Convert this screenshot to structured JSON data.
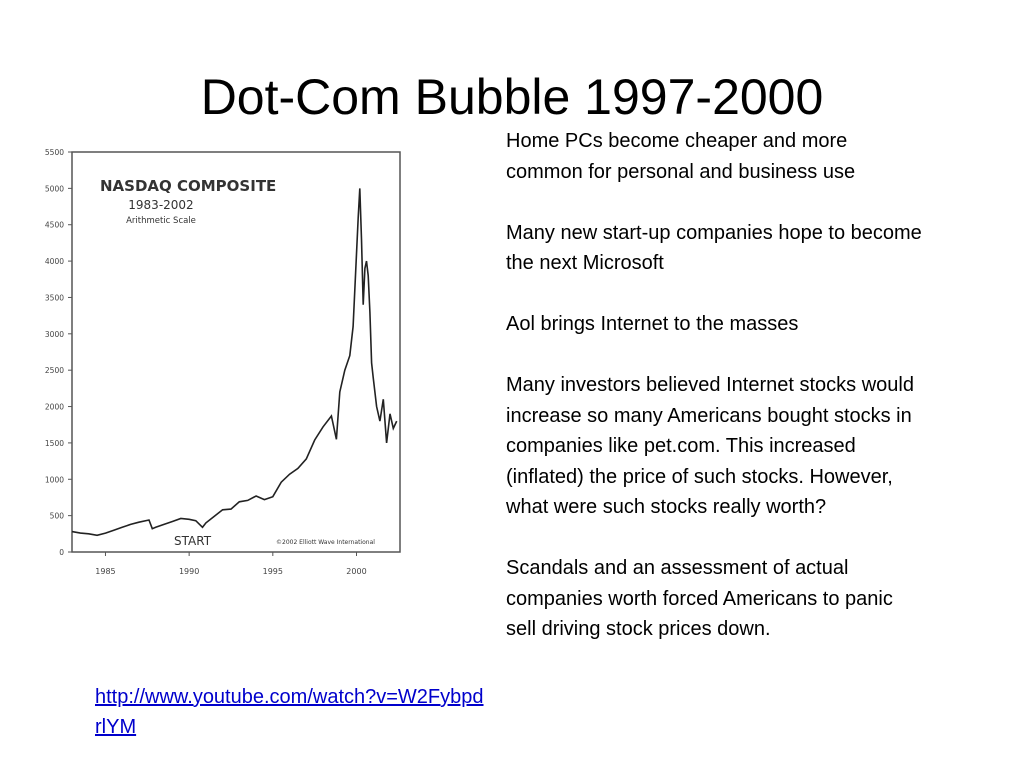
{
  "slide": {
    "title": "Dot-Com Bubble 1997-2000",
    "bullets": [
      "Home PCs become cheaper and more common for personal and business use",
      "Many new start-up companies hope to become the next Microsoft",
      "Aol brings Internet to the masses",
      "Many investors believed Internet stocks would increase so many Americans bought stocks in companies like pet.com. This increased (inflated) the price of such stocks. However, what were such stocks really worth?",
      "Scandals and an assessment of actual companies worth forced Americans to panic sell driving stock prices down."
    ],
    "link": "http://www.youtube.com/watch?v=W2FybpdrlYM"
  },
  "chart_data": {
    "type": "line",
    "title": "NASDAQ COMPOSITE",
    "subtitle": "1983-2002",
    "scale_note": "Arithmetic Scale",
    "annotation": "START",
    "copyright": "©2002 Elliott Wave International",
    "x_ticks": [
      "1985",
      "1990",
      "1995",
      "2000"
    ],
    "y_ticks": [
      "5500",
      "5000",
      "4500",
      "4000",
      "3500",
      "3000",
      "2500",
      "2000",
      "1500",
      "1000",
      "500",
      "0"
    ],
    "xlim": [
      1983,
      2002.6
    ],
    "ylim": [
      0,
      5500
    ],
    "series": [
      {
        "x": [
          1983.0,
          1983.5,
          1984.0,
          1984.5,
          1985.0,
          1985.5,
          1986.0,
          1986.5,
          1987.0,
          1987.6,
          1987.8,
          1988.0,
          1988.5,
          1989.0,
          1989.5,
          1990.0,
          1990.4,
          1990.8,
          1991.0,
          1991.5,
          1992.0,
          1992.5,
          1993.0,
          1993.5,
          1994.0,
          1994.5,
          1995.0,
          1995.5,
          1996.0,
          1996.5,
          1997.0,
          1997.5,
          1998.0,
          1998.5,
          1998.8,
          1999.0,
          1999.3,
          1999.6,
          1999.8,
          2000.0,
          2000.1,
          2000.2,
          2000.3,
          2000.4,
          2000.5,
          2000.6,
          2000.7,
          2000.8,
          2000.9,
          2001.0,
          2001.2,
          2001.4,
          2001.6,
          2001.8,
          2002.0,
          2002.2,
          2002.4
        ],
        "y": [
          280,
          260,
          250,
          230,
          260,
          300,
          340,
          380,
          410,
          440,
          320,
          340,
          380,
          420,
          460,
          450,
          430,
          340,
          400,
          490,
          580,
          590,
          690,
          710,
          770,
          720,
          760,
          960,
          1070,
          1150,
          1280,
          1540,
          1720,
          1870,
          1550,
          2200,
          2500,
          2700,
          3100,
          4100,
          4600,
          5000,
          4300,
          3400,
          3900,
          4000,
          3800,
          3300,
          2600,
          2400,
          2000,
          1800,
          2100,
          1500,
          1900,
          1700,
          1800
        ]
      }
    ]
  }
}
